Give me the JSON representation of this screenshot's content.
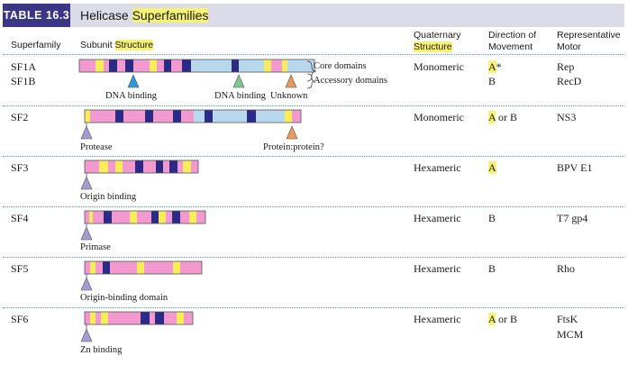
{
  "table": {
    "tag": "TABLE 16.3",
    "title_plain": "Helicase ",
    "title_hl": "Superfamilies"
  },
  "columns": {
    "superfamily": "Superfamily",
    "subunit_plain": "Subunit ",
    "subunit_hl": "Structure",
    "quaternary_line1": "Quaternary",
    "quaternary_line2_hl": "Structure",
    "direction_line1": "Direction of",
    "direction_line2": "Movement",
    "motor_line1": "Representative",
    "motor_line2": "Motor"
  },
  "rows": [
    {
      "families": [
        "SF1A",
        "SF1B"
      ],
      "quaternary": "Monomeric",
      "direction": [
        {
          "hl": "A",
          "rest": "*"
        },
        {
          "hl": "",
          "rest": "B"
        }
      ],
      "motors": [
        "Rep",
        "RecD"
      ]
    },
    {
      "families": [
        "SF2"
      ],
      "quaternary": "Monomeric",
      "direction": [
        {
          "hl": "A",
          "rest": " or B"
        }
      ],
      "motors": [
        "NS3"
      ]
    },
    {
      "families": [
        "SF3"
      ],
      "quaternary": "Hexameric",
      "direction": [
        {
          "hl": "A",
          "rest": ""
        }
      ],
      "motors": [
        "BPV E1"
      ]
    },
    {
      "families": [
        "SF4"
      ],
      "quaternary": "Hexameric",
      "direction": [
        {
          "hl": "",
          "rest": "B"
        }
      ],
      "motors": [
        "T7 gp4"
      ]
    },
    {
      "families": [
        "SF5"
      ],
      "quaternary": "Hexameric",
      "direction": [
        {
          "hl": "",
          "rest": "B"
        }
      ],
      "motors": [
        "Rho"
      ]
    },
    {
      "families": [
        "SF6"
      ],
      "quaternary": "Hexameric",
      "direction": [
        {
          "hl": "A",
          "rest": " or B"
        }
      ],
      "motors": [
        "FtsK",
        "MCM"
      ]
    }
  ],
  "annotations": {
    "core_domains": "Core domains",
    "accessory_domains": "Accessory domains",
    "dna_binding_1": "DNA binding",
    "dna_binding_2": "DNA binding",
    "unknown": "Unknown",
    "protease": "Protease",
    "protein_protein": "Protein:protein?",
    "origin_binding": "Origin binding",
    "primase": "Primase",
    "origin_binding_domain": "Origin-binding domain",
    "zn_binding": "Zn binding"
  },
  "colors": {
    "header_band": "#dcdbe8",
    "tag_background": "#3b3585",
    "highlight": "#f6f273",
    "accessory_domain": "#b8d8ee",
    "core_domain": "#f29ad0",
    "motif_dark": "#2b2a86",
    "motif_yellow": "#f7ec5a",
    "marker_blue": "#2a9bd8",
    "marker_green": "#7cc98f",
    "marker_orange": "#e89a5c",
    "marker_purple": "#a79ad2",
    "divider": "#4a9cc6"
  }
}
